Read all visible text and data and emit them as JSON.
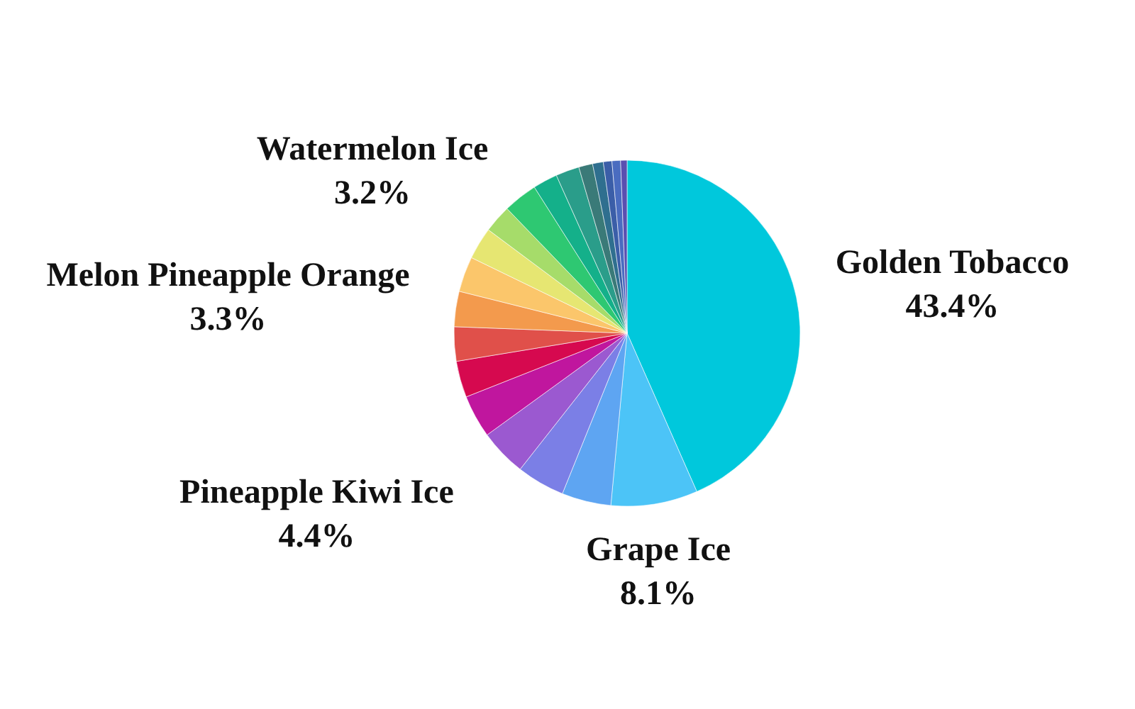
{
  "chart_data": {
    "type": "pie",
    "categories": [
      "Golden Tobacco",
      "Grape Ice",
      null,
      null,
      "Pineapple Kiwi Ice",
      null,
      null,
      null,
      "Melon Pineapple Orange",
      null,
      null,
      null,
      "Watermelon Ice",
      null,
      null,
      null,
      null,
      null,
      null,
      null
    ],
    "values": [
      43.4,
      8.1,
      4.6,
      4.5,
      4.4,
      4.0,
      3.4,
      3.2,
      3.3,
      3.3,
      3.0,
      2.6,
      3.2,
      2.3,
      2.2,
      1.3,
      1.0,
      0.8,
      0.8,
      0.6
    ],
    "value_labels": [
      "43.4%",
      "8.1%",
      null,
      null,
      "4.4%",
      null,
      null,
      null,
      "3.3%",
      null,
      null,
      null,
      "3.2%",
      null,
      null,
      null,
      null,
      null,
      null,
      null
    ],
    "colors": [
      "#00c8dc",
      "#4cc4f7",
      "#5ea5f2",
      "#7b7fe6",
      "#9b59d0",
      "#c0169e",
      "#d6094f",
      "#e0504a",
      "#f39a4d",
      "#fbc66b",
      "#e6e672",
      "#a6dc6a",
      "#2ec872",
      "#14b08a",
      "#2a9d8a",
      "#3a7a78",
      "#2f6f8f",
      "#3b5ea8",
      "#4a6cc0",
      "#5a4fb0"
    ]
  }
}
